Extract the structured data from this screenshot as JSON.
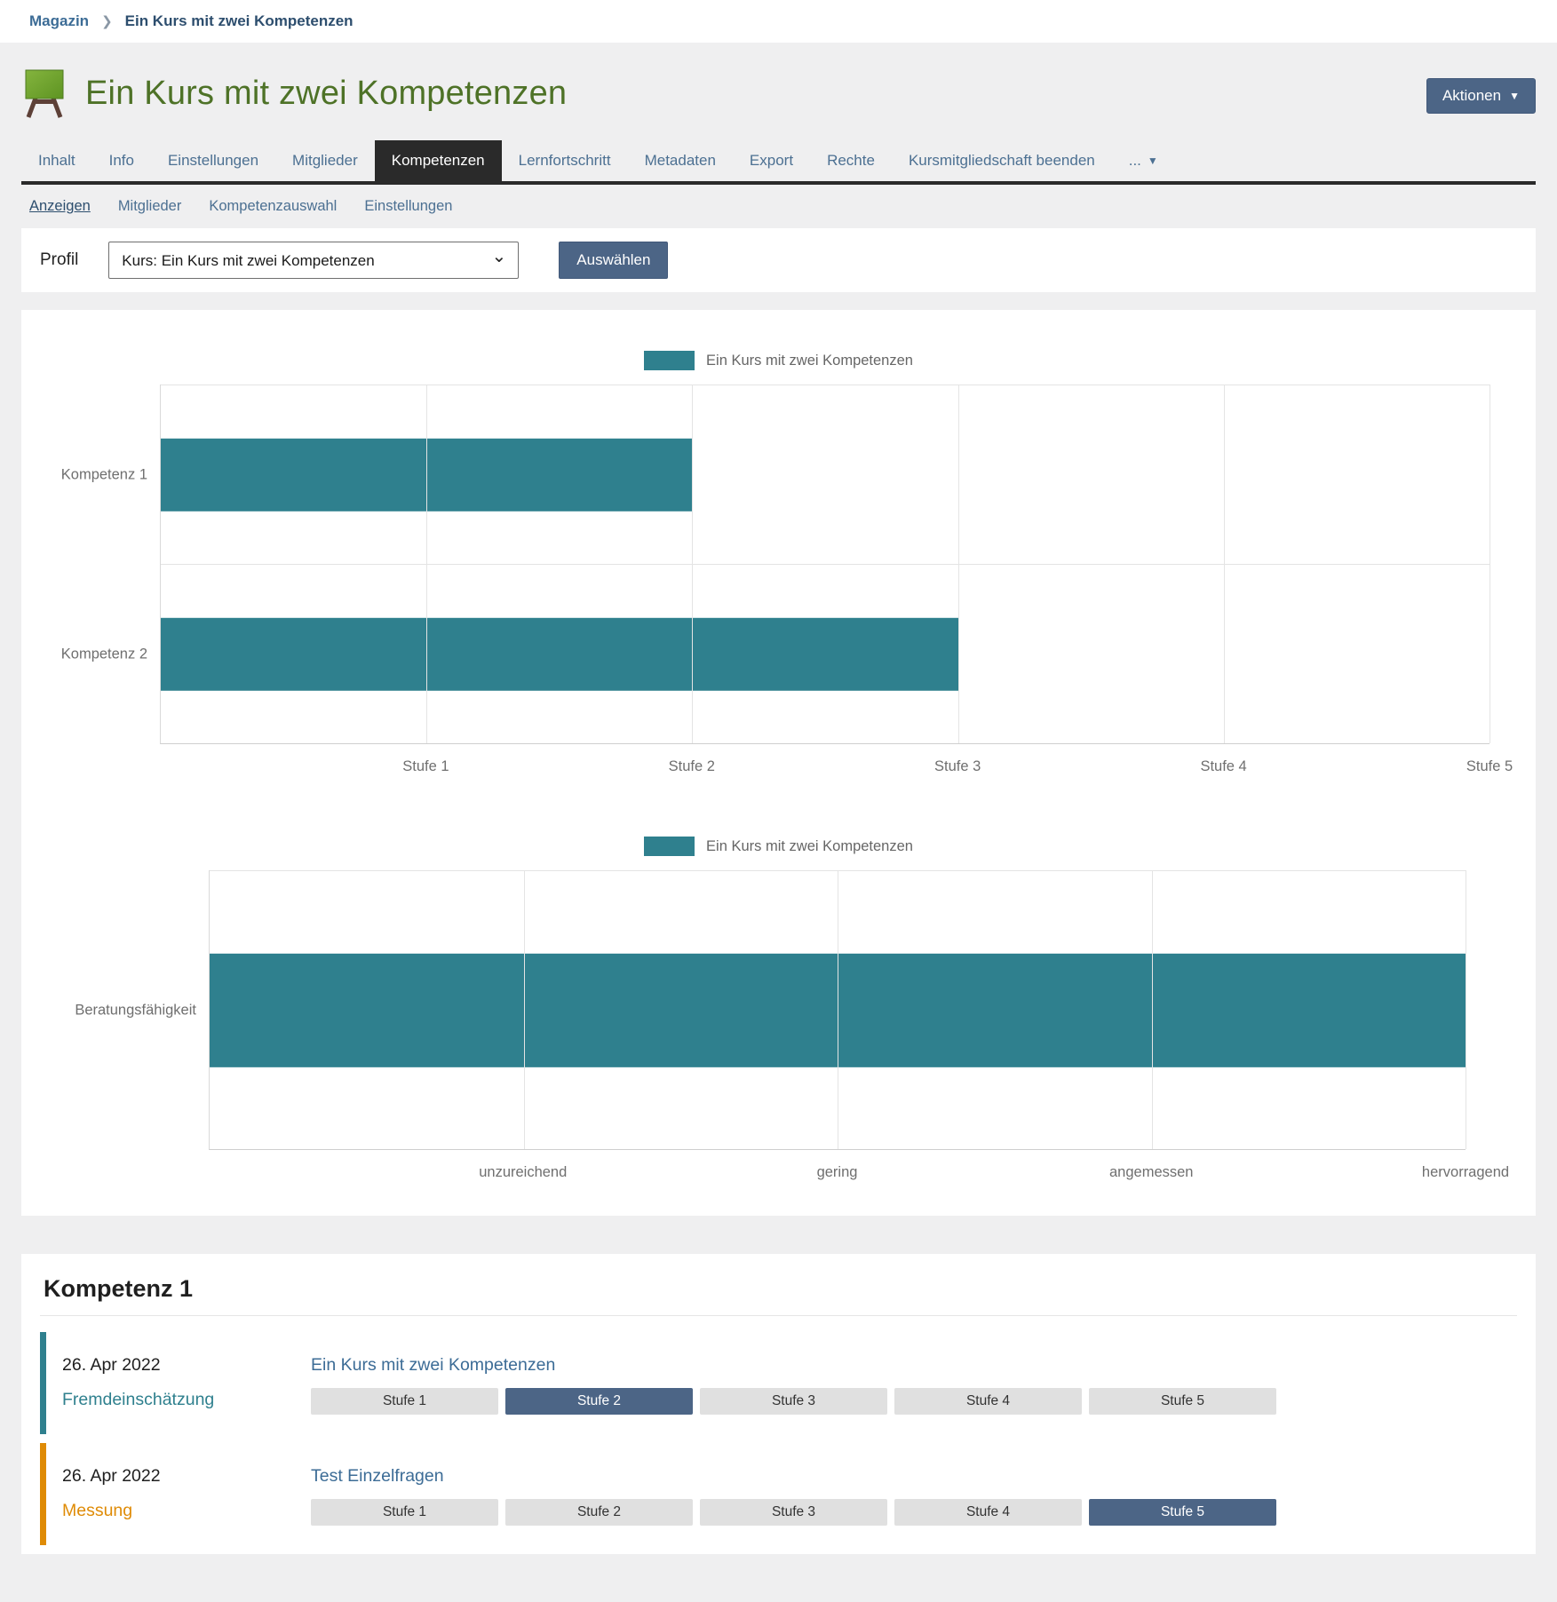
{
  "colors": {
    "accent_blue": "#4c6586",
    "teal": "#2f808e",
    "orange": "#df8b06",
    "title_green": "#4e7227",
    "link": "#3c6c96",
    "tab_text": "#4c7092"
  },
  "breadcrumb": {
    "items": [
      "Magazin",
      "Ein Kurs mit zwei Kompetenzen"
    ]
  },
  "header": {
    "title": "Ein Kurs mit zwei Kompetenzen",
    "actions_label": "Aktionen"
  },
  "tabs": {
    "items": [
      "Inhalt",
      "Info",
      "Einstellungen",
      "Mitglieder",
      "Kompetenzen",
      "Lernfortschritt",
      "Metadaten",
      "Export",
      "Rechte",
      "Kursmitgliedschaft beenden"
    ],
    "active": "Kompetenzen",
    "more_label": "..."
  },
  "subtabs": {
    "items": [
      "Anzeigen",
      "Mitglieder",
      "Kompetenzauswahl",
      "Einstellungen"
    ],
    "active": "Anzeigen"
  },
  "profile": {
    "label": "Profil",
    "selected_option": "Kurs: Ein Kurs mit zwei Kompetenzen",
    "button_label": "Auswählen"
  },
  "chart_data": [
    {
      "type": "bar",
      "orientation": "horizontal",
      "legend": "Ein Kurs mit zwei Kompetenzen",
      "legend_position": "top-center",
      "categories": [
        "Kompetenz 1",
        "Kompetenz 2"
      ],
      "values": [
        2,
        3
      ],
      "series_color": "#2f808e",
      "x_tick_labels": [
        "Stufe 1",
        "Stufe 2",
        "Stufe 3",
        "Stufe 4",
        "Stufe 5"
      ],
      "xlim": [
        0,
        5
      ],
      "grid": true
    },
    {
      "type": "bar",
      "orientation": "horizontal",
      "legend": "Ein Kurs mit zwei Kompetenzen",
      "legend_position": "top-center",
      "categories": [
        "Beratungsfähigkeit"
      ],
      "values": [
        4
      ],
      "series_color": "#2f808e",
      "x_tick_labels": [
        "unzureichend",
        "gering",
        "angemessen",
        "hervorragend"
      ],
      "xlim": [
        0,
        4
      ],
      "grid": true
    }
  ],
  "competence_section": {
    "title": "Kompetenz 1",
    "entries": [
      {
        "date": "26. Apr 2022",
        "kind": "Fremdeinschätzung",
        "accent_color": "#2f808e",
        "link_label": "Ein Kurs mit zwei Kompetenzen",
        "levels": [
          "Stufe 1",
          "Stufe 2",
          "Stufe 3",
          "Stufe 4",
          "Stufe 5"
        ],
        "selected_level": "Stufe 2",
        "selected_index": 1
      },
      {
        "date": "26. Apr 2022",
        "kind": "Messung",
        "accent_color": "#df8b06",
        "link_label": "Test Einzelfragen",
        "levels": [
          "Stufe 1",
          "Stufe 2",
          "Stufe 3",
          "Stufe 4",
          "Stufe 5"
        ],
        "selected_level": "Stufe 5",
        "selected_index": 4
      }
    ]
  }
}
